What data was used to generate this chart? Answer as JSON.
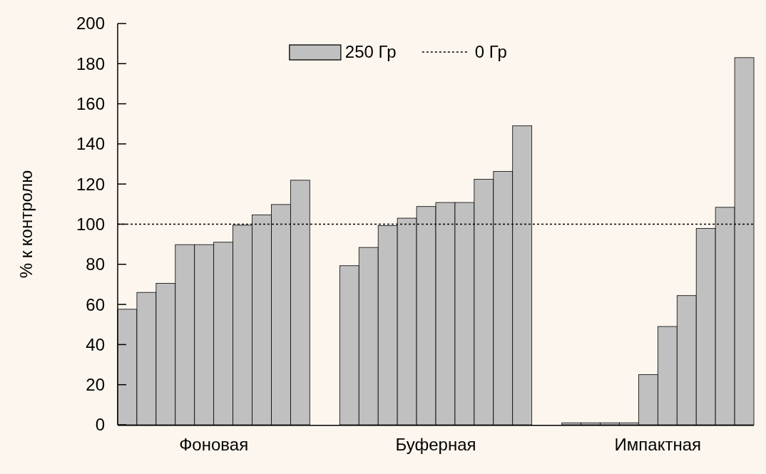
{
  "chart_data": {
    "type": "bar",
    "ylabel": "% к контролю",
    "categories": [
      "Фоновая",
      "Буферная",
      "Импактная"
    ],
    "series": [
      {
        "name": "250 Гр",
        "color": "#c0c0c0",
        "values": [
          57.6,
          79.3,
          1
        ]
      },
      {
        "color": "#c0c0c0",
        "values": [
          66,
          88.4,
          1
        ]
      },
      {
        "color": "#c0c0c0",
        "values": [
          70.5,
          99.3,
          1
        ]
      },
      {
        "color": "#c0c0c0",
        "values": [
          89.8,
          103,
          1
        ]
      },
      {
        "color": "#c0c0c0",
        "values": [
          89.8,
          108.8,
          25
        ]
      },
      {
        "color": "#c0c0c0",
        "values": [
          91,
          110.8,
          49
        ]
      },
      {
        "color": "#c0c0c0",
        "values": [
          99.5,
          110.8,
          64.4
        ]
      },
      {
        "color": "#c0c0c0",
        "values": [
          104.6,
          122.4,
          97.9
        ]
      },
      {
        "color": "#c0c0c0",
        "values": [
          109.8,
          126.3,
          108.4
        ]
      },
      {
        "color": "#c0c0c0",
        "values": [
          121.9,
          149,
          183
        ]
      }
    ],
    "ylim": [
      0,
      200
    ],
    "yticks": [
      0,
      20,
      40,
      60,
      80,
      100,
      120,
      140,
      160,
      180,
      200
    ],
    "ref_lines": [
      {
        "axis": "y",
        "value": 100,
        "label": "0 Гр",
        "color": "#000000",
        "line_style": "dotted"
      }
    ],
    "legend": "top"
  }
}
